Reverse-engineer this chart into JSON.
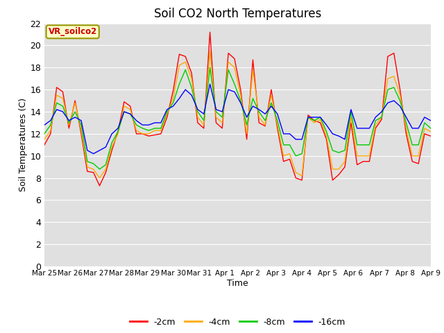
{
  "title": "Soil CO2 North Temperatures",
  "xlabel": "Time",
  "ylabel": "Soil Temperatures (C)",
  "ylim": [
    0,
    22
  ],
  "yticks": [
    0,
    2,
    4,
    6,
    8,
    10,
    12,
    14,
    16,
    18,
    20,
    22
  ],
  "plot_bg_color": "#e0e0e0",
  "fig_bg_color": "#ffffff",
  "legend_label": "VR_soilco2",
  "series_labels": [
    "-2cm",
    "-4cm",
    "-8cm",
    "-16cm"
  ],
  "series_colors": [
    "#ff0000",
    "#ffaa00",
    "#00cc00",
    "#0000ff"
  ],
  "x_labels": [
    "Mar 25",
    "Mar 26",
    "Mar 27",
    "Mar 28",
    "Mar 29",
    "Mar 30",
    "Mar 31",
    "Apr 1",
    "Apr 2",
    "Apr 3",
    "Apr 4",
    "Apr 5",
    "Apr 6",
    "Apr 7",
    "Apr 8",
    "Apr 9"
  ],
  "x_positions": [
    0,
    1,
    2,
    3,
    4,
    5,
    6,
    7,
    8,
    9,
    10,
    11,
    12,
    13,
    14,
    15
  ],
  "data_2cm": [
    11.0,
    12.0,
    16.2,
    15.8,
    12.5,
    15.0,
    12.0,
    8.6,
    8.5,
    7.3,
    8.5,
    10.5,
    12.2,
    14.9,
    14.5,
    12.0,
    12.0,
    11.8,
    11.9,
    12.0,
    13.5,
    15.9,
    19.2,
    19.0,
    17.5,
    13.0,
    12.5,
    21.2,
    13.0,
    12.5,
    19.3,
    18.8,
    16.0,
    11.5,
    18.7,
    13.0,
    12.7,
    16.0,
    12.5,
    9.5,
    9.7,
    8.0,
    7.8,
    13.7,
    13.2,
    13.0,
    11.5,
    7.8,
    8.3,
    9.0,
    13.0,
    9.2,
    9.5,
    9.5,
    12.5,
    13.3,
    19.0,
    19.3,
    16.0,
    12.0,
    9.5,
    9.3,
    12.0,
    11.8
  ],
  "data_4cm": [
    11.5,
    12.3,
    15.5,
    15.2,
    12.8,
    14.8,
    12.3,
    9.0,
    8.8,
    8.0,
    8.8,
    10.8,
    12.0,
    14.5,
    14.2,
    12.3,
    12.0,
    12.0,
    12.3,
    12.3,
    13.8,
    15.2,
    18.2,
    18.5,
    17.0,
    13.5,
    12.8,
    19.5,
    13.5,
    13.0,
    18.5,
    18.0,
    15.5,
    12.0,
    17.8,
    13.5,
    12.8,
    15.5,
    12.8,
    10.0,
    10.2,
    8.5,
    8.2,
    13.5,
    13.0,
    13.3,
    11.8,
    8.8,
    8.8,
    9.5,
    13.5,
    10.0,
    10.0,
    10.0,
    12.8,
    13.5,
    17.0,
    17.2,
    15.5,
    12.5,
    10.0,
    10.0,
    12.5,
    12.2
  ],
  "data_8cm": [
    12.0,
    12.8,
    14.8,
    14.5,
    13.0,
    14.0,
    12.8,
    9.5,
    9.3,
    8.8,
    9.2,
    11.2,
    12.2,
    14.0,
    13.8,
    12.8,
    12.5,
    12.3,
    12.5,
    12.5,
    14.0,
    14.8,
    16.5,
    17.8,
    16.2,
    14.0,
    13.2,
    18.0,
    14.0,
    13.5,
    17.8,
    16.5,
    15.0,
    12.8,
    15.2,
    14.0,
    13.2,
    14.8,
    13.2,
    11.0,
    11.0,
    10.0,
    10.2,
    13.5,
    13.2,
    13.5,
    12.2,
    10.5,
    10.3,
    10.5,
    14.0,
    11.0,
    11.0,
    11.0,
    13.2,
    13.5,
    16.0,
    16.2,
    15.0,
    13.0,
    11.0,
    11.0,
    13.0,
    12.5
  ],
  "data_16cm": [
    12.8,
    13.2,
    14.2,
    14.0,
    13.2,
    13.5,
    13.2,
    10.5,
    10.2,
    10.5,
    10.8,
    12.0,
    12.5,
    14.0,
    13.8,
    13.2,
    12.8,
    12.8,
    13.0,
    13.0,
    14.2,
    14.5,
    15.2,
    16.0,
    15.5,
    14.2,
    13.8,
    16.5,
    14.2,
    14.0,
    16.0,
    15.8,
    14.8,
    13.5,
    14.5,
    14.2,
    13.8,
    14.5,
    13.8,
    12.0,
    12.0,
    11.5,
    11.5,
    13.5,
    13.5,
    13.5,
    12.8,
    12.0,
    11.8,
    11.5,
    14.2,
    12.5,
    12.5,
    12.5,
    13.5,
    14.0,
    14.8,
    15.0,
    14.5,
    13.5,
    12.5,
    12.5,
    13.5,
    13.2
  ]
}
